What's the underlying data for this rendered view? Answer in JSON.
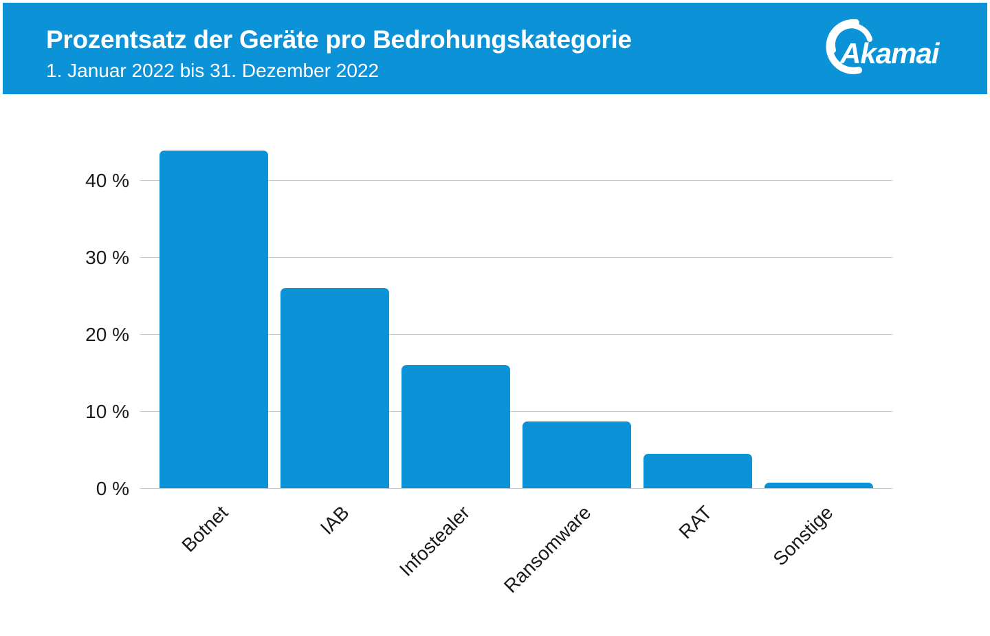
{
  "header": {
    "title": "Prozentsatz der Geräte pro Bedrohungskategorie",
    "subtitle": "1. Januar 2022 bis 31. Dezember 2022",
    "logo_text": "Akamai"
  },
  "colors": {
    "header_background": "#0c93d7",
    "header_text": "#ffffff",
    "bar": "#0c93d7",
    "gridline": "#cccccc",
    "axis_text": "#1a1a1a",
    "page_background": "#ffffff"
  },
  "chart_data": {
    "type": "bar",
    "title": "Prozentsatz der Geräte pro Bedrohungskategorie",
    "subtitle": "1. Januar 2022 bis 31. Dezember 2022",
    "categories": [
      "Botnet",
      "IAB",
      "Infostealer",
      "Ransomware",
      "RAT",
      "Sonstige"
    ],
    "values": [
      43.8,
      26.0,
      16.0,
      8.7,
      4.5,
      0.7
    ],
    "unit": "%",
    "xlabel": "",
    "ylabel": "",
    "ylim": [
      0,
      45
    ],
    "yticks": [
      0,
      10,
      20,
      30,
      40
    ],
    "ytick_labels": [
      "0 %",
      "10 %",
      "20 %",
      "30 %",
      "40 %"
    ],
    "grid": true,
    "legend": false,
    "x_labels_rotation_deg": -45,
    "bar_color": "#0c93d7"
  }
}
